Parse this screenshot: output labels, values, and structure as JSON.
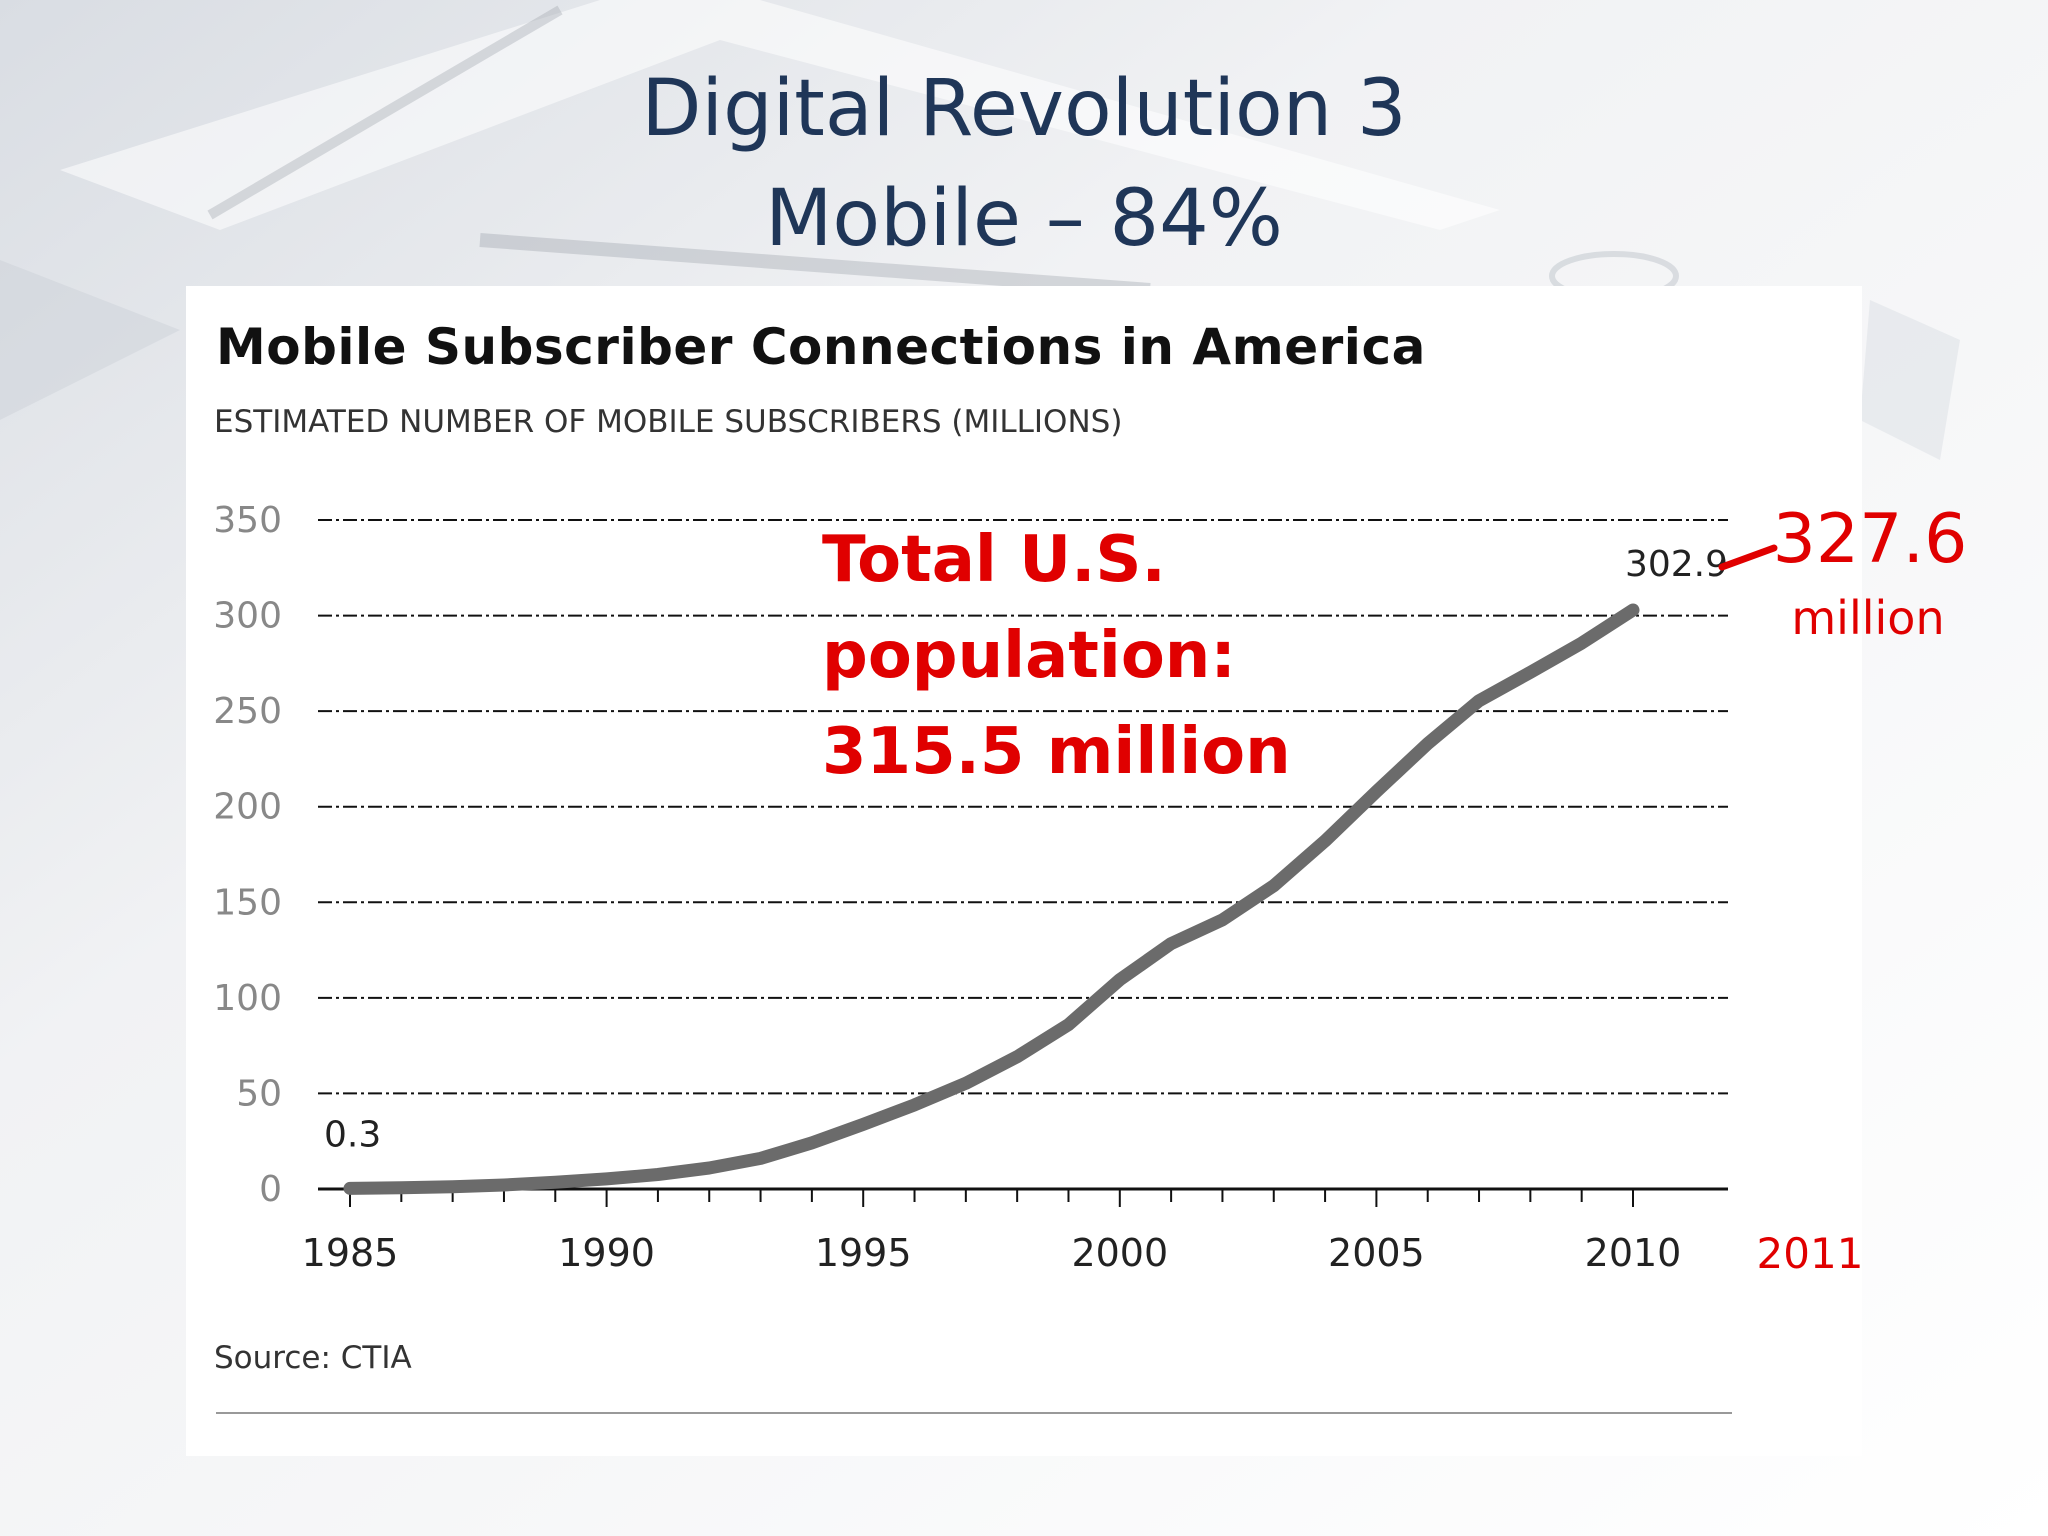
{
  "slide": {
    "title_line1": "Digital Revolution 3",
    "title_line2": "Mobile – 84%"
  },
  "chart_data": {
    "type": "line",
    "title": "Mobile Subscriber Connections in America",
    "subtitle": "ESTIMATED NUMBER OF MOBILE SUBSCRIBERS (MILLIONS)",
    "xlabel": "",
    "ylabel": "",
    "ylim": [
      0,
      350
    ],
    "xlim": [
      1985,
      2012
    ],
    "yticks": [
      0,
      50,
      100,
      150,
      200,
      250,
      300,
      350
    ],
    "xticks": [
      1985,
      1990,
      1995,
      2000,
      2005,
      2010
    ],
    "grid": "horizontal dashed",
    "series": [
      {
        "x": [
          1985,
          1986,
          1987,
          1988,
          1989,
          1990,
          1991,
          1992,
          1993,
          1994,
          1995,
          1996,
          1997,
          1998,
          1999,
          2000,
          2001,
          2002,
          2003,
          2004,
          2005,
          2006,
          2007,
          2008,
          2009,
          2010
        ],
        "values": [
          0.3,
          0.7,
          1.2,
          2.1,
          3.5,
          5.3,
          7.6,
          11.0,
          16.0,
          24.1,
          33.8,
          44.0,
          55.3,
          69.2,
          86.0,
          109.5,
          128.4,
          140.8,
          158.7,
          182.1,
          207.9,
          233.0,
          255.4,
          270.3,
          285.6,
          302.9
        ],
        "color": "#6b6b6b"
      }
    ],
    "data_labels": [
      {
        "x": 1985,
        "value": "0.3"
      },
      {
        "x": 2010,
        "value": "302.9"
      }
    ],
    "annotations": {
      "population": "Total U.S.\npopulation:\n315.5 million",
      "year_2011": "2011",
      "value_2011": "327.6",
      "value_2011_unit": "million",
      "color": "#e00000"
    },
    "source": "Source: CTIA"
  }
}
